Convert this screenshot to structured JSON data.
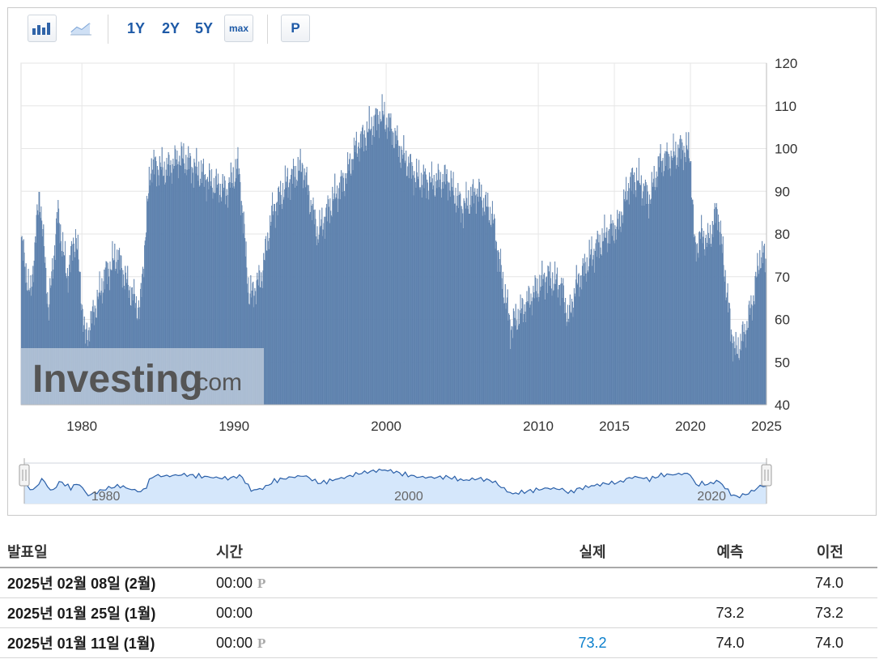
{
  "toolbar": {
    "buttons": [
      "1Y",
      "2Y",
      "5Y",
      "max",
      "P"
    ],
    "icons": [
      "bar-chart-icon",
      "line-chart-icon"
    ]
  },
  "watermark": {
    "brand": "Investing",
    "suffix": ".com"
  },
  "colors": {
    "bar": "#6d8fb9",
    "bar_edge": "#4d72a0",
    "navigator_fill": "#d5e7fb",
    "navigator_line": "#2a5fa8",
    "link": "#1e5aa7",
    "actual": "#0a7fcc"
  },
  "chart_data": {
    "type": "bar",
    "x_start": 1976.0,
    "x_step_years": 0.0384,
    "ylim": [
      40,
      120
    ],
    "xlim": [
      1976,
      2025
    ],
    "yticks": [
      "120",
      "110",
      "100",
      "90",
      "80",
      "70",
      "60",
      "50",
      "40"
    ],
    "xticks": [
      "1980",
      "1990",
      "2000",
      "2010",
      "2015",
      "2020",
      "2025"
    ],
    "navigator_labels": [
      "1980",
      "2000",
      "2020"
    ],
    "grid": true,
    "x_anchors": [
      1976,
      1976.6,
      1977.2,
      1977.8,
      1978.4,
      1979.0,
      1979.6,
      1980.2,
      1980.8,
      1981.5,
      1982.3,
      1983.0,
      1983.8,
      1984.5,
      1985.5,
      1986.5,
      1987.5,
      1988.5,
      1989.5,
      1990.3,
      1991.0,
      1991.8,
      1992.5,
      1993.5,
      1994.5,
      1995.5,
      1996.5,
      1997.3,
      1998.0,
      1999.0,
      1999.7,
      2000.3,
      2001.0,
      2002.0,
      2003.0,
      2004.0,
      2005.0,
      2006.0,
      2007.0,
      2007.6,
      2008.2,
      2008.9,
      2009.5,
      2010.5,
      2011.5,
      2012.0,
      2012.5,
      2013.5,
      2014.5,
      2015.3,
      2016.0,
      2016.5,
      2017.3,
      2018.0,
      2018.8,
      2019.5,
      2020.0,
      2020.3,
      2020.7,
      2021.2,
      2021.8,
      2022.3,
      2022.7,
      2023.0,
      2023.6,
      2024.1,
      2024.6,
      2025.0
    ],
    "y_anchors": [
      78,
      65,
      90,
      62,
      85,
      70,
      80,
      55,
      62,
      70,
      75,
      68,
      62,
      96,
      95,
      98,
      95,
      92,
      90,
      96,
      65,
      70,
      85,
      92,
      96,
      80,
      88,
      93,
      100,
      105,
      108,
      105,
      99,
      93,
      92,
      93,
      86,
      90,
      84,
      70,
      58,
      62,
      65,
      70,
      68,
      60,
      68,
      75,
      80,
      82,
      92,
      93,
      88,
      97,
      98,
      100,
      99,
      76,
      80,
      78,
      86,
      70,
      57,
      52,
      57,
      64,
      75,
      74
    ],
    "series": []
  },
  "table": {
    "headers": {
      "date": "발표일",
      "time": "시간",
      "actual": "실제",
      "forecast": "예측",
      "previous": "이전"
    },
    "rows": [
      {
        "date": "2025년 02월 08일 (2월)",
        "time": "00:00",
        "preliminary": "P",
        "actual": "",
        "forecast": "",
        "previous": "74.0"
      },
      {
        "date": "2025년 01월 25일 (1월)",
        "time": "00:00",
        "preliminary": "",
        "actual": "",
        "forecast": "73.2",
        "previous": "73.2"
      },
      {
        "date": "2025년 01월 11일 (1월)",
        "time": "00:00",
        "preliminary": "P",
        "actual": "73.2",
        "forecast": "74.0",
        "previous": "74.0"
      }
    ]
  }
}
